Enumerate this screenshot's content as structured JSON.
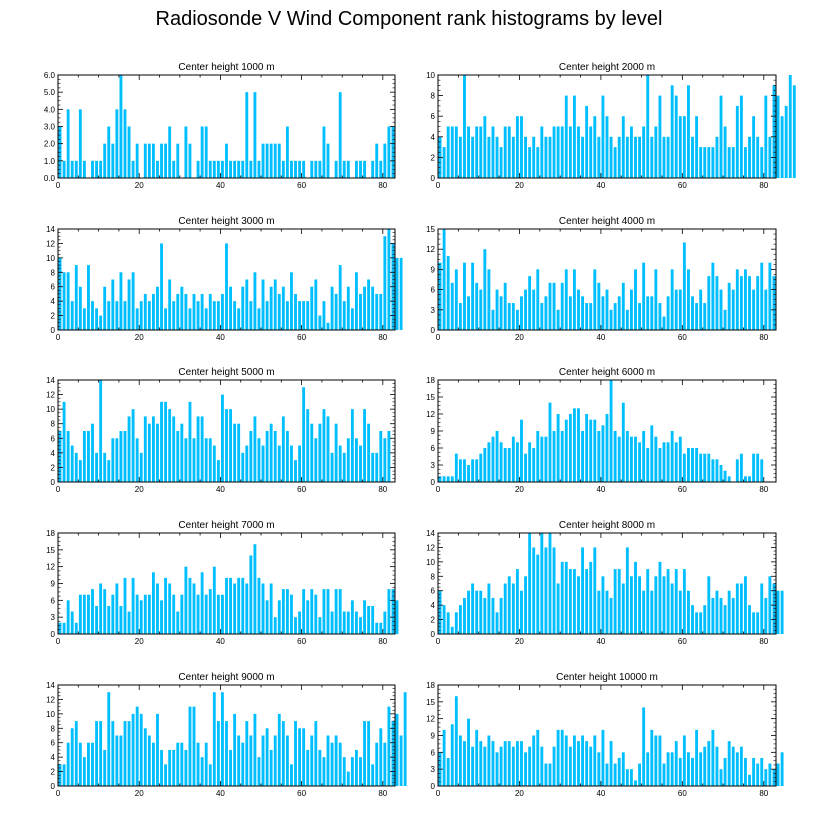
{
  "title": "Radiosonde V Wind Component rank histograms by level",
  "bar_color": "#00BFFF",
  "chart_data": [
    {
      "type": "bar",
      "title": "Center height 1000 m",
      "ylim": [
        0,
        6
      ],
      "yticks": [
        "0.0",
        "1.0",
        "2.0",
        "3.0",
        "4.0",
        "5.0",
        "6.0"
      ],
      "xticks": [
        "0",
        "20",
        "40",
        "60",
        "80"
      ],
      "values": [
        3,
        1,
        4,
        1,
        1,
        4,
        1,
        0,
        1,
        1,
        1,
        2,
        3,
        2,
        4,
        6,
        4,
        3,
        1,
        2,
        0,
        2,
        2,
        2,
        1,
        2,
        2,
        3,
        1,
        2,
        0,
        3,
        2,
        0,
        1,
        3,
        3,
        1,
        1,
        1,
        1,
        2,
        1,
        1,
        1,
        1,
        5,
        1,
        5,
        1,
        2,
        2,
        2,
        2,
        2,
        1,
        3,
        1,
        1,
        1,
        1,
        0,
        1,
        1,
        1,
        3,
        2,
        0,
        1,
        5,
        1,
        1,
        0,
        1,
        1,
        1,
        0,
        1,
        2,
        1,
        2,
        3,
        3
      ]
    },
    {
      "type": "bar",
      "title": "Center height 2000 m",
      "ylim": [
        0,
        10
      ],
      "yticks": [
        "0",
        "2",
        "4",
        "6",
        "8",
        "10"
      ],
      "xticks": [
        "0",
        "20",
        "40",
        "60",
        "80"
      ],
      "values": [
        4,
        3,
        5,
        5,
        5,
        4,
        10,
        5,
        4,
        5,
        5,
        6,
        4,
        5,
        4,
        3,
        5,
        5,
        4,
        6,
        6,
        4,
        3,
        4,
        3,
        5,
        4,
        4,
        5,
        5,
        5,
        8,
        5,
        8,
        5,
        4,
        7,
        5,
        6,
        4,
        8,
        6,
        4,
        3,
        4,
        6,
        4,
        5,
        4,
        4,
        5,
        10,
        4,
        5,
        8,
        4,
        4,
        9,
        8,
        6,
        6,
        9,
        4,
        6,
        3,
        3,
        3,
        3,
        4,
        8,
        5,
        3,
        3,
        7,
        8,
        3,
        4,
        6,
        4,
        3,
        8,
        4,
        9,
        8,
        6,
        7,
        10,
        9
      ]
    },
    {
      "type": "bar",
      "title": "Center height 3000 m",
      "ylim": [
        0,
        14
      ],
      "yticks": [
        "0",
        "2",
        "4",
        "6",
        "8",
        "10",
        "12",
        "14"
      ],
      "xticks": [
        "0",
        "20",
        "40",
        "60",
        "80"
      ],
      "values": [
        10,
        8,
        8,
        4,
        9,
        6,
        3,
        9,
        4,
        3,
        2,
        6,
        4,
        7,
        4,
        8,
        4,
        7,
        8,
        3,
        4,
        5,
        4,
        5,
        6,
        12,
        3,
        7,
        4,
        5,
        6,
        5,
        3,
        5,
        4,
        5,
        3,
        5,
        4,
        4,
        5,
        12,
        6,
        4,
        3,
        6,
        7,
        4,
        8,
        3,
        7,
        4,
        6,
        7,
        5,
        6,
        4,
        8,
        5,
        4,
        4,
        4,
        6,
        7,
        2,
        4,
        1,
        6,
        5,
        9,
        4,
        6,
        3,
        8,
        5,
        6,
        7,
        6,
        5,
        5,
        13,
        14,
        12,
        10,
        10
      ]
    },
    {
      "type": "bar",
      "title": "Center height 4000 m",
      "ylim": [
        0,
        15
      ],
      "yticks": [
        "0",
        "3",
        "6",
        "9",
        "12",
        "15"
      ],
      "xticks": [
        "0",
        "20",
        "40",
        "60",
        "80"
      ],
      "values": [
        10,
        15,
        11,
        7,
        9,
        4,
        10,
        5,
        10,
        7,
        6,
        12,
        9,
        3,
        6,
        5,
        7,
        4,
        4,
        3,
        5,
        6,
        8,
        6,
        9,
        4,
        5,
        7,
        7,
        3,
        7,
        9,
        5,
        9,
        6,
        5,
        4,
        4,
        9,
        7,
        5,
        6,
        3,
        4,
        5,
        7,
        3,
        6,
        9,
        4,
        10,
        5,
        5,
        9,
        4,
        2,
        5,
        9,
        6,
        6,
        13,
        9,
        5,
        4,
        6,
        4,
        8,
        10,
        8,
        6,
        3,
        7,
        6,
        9,
        8,
        9,
        8,
        6,
        8,
        10,
        6,
        10,
        8
      ]
    },
    {
      "type": "bar",
      "title": "Center height 5000 m",
      "ylim": [
        0,
        14
      ],
      "yticks": [
        "0",
        "2",
        "4",
        "6",
        "8",
        "10",
        "12",
        "14"
      ],
      "xticks": [
        "0",
        "20",
        "40",
        "60",
        "80"
      ],
      "values": [
        7,
        11,
        7,
        5,
        4,
        3,
        7,
        7,
        8,
        4,
        14,
        4,
        3,
        6,
        6,
        7,
        7,
        9,
        10,
        6,
        4,
        9,
        8,
        9,
        8,
        11,
        11,
        10,
        9,
        7,
        8,
        6,
        11,
        6,
        9,
        9,
        6,
        6,
        5,
        3,
        12,
        10,
        10,
        8,
        8,
        4,
        5,
        7,
        9,
        6,
        5,
        7,
        8,
        7,
        5,
        9,
        7,
        5,
        3,
        5,
        13,
        10,
        8,
        6,
        8,
        10,
        9,
        4,
        8,
        5,
        4,
        6,
        10,
        6,
        5,
        10,
        8,
        4,
        4,
        7,
        6,
        7
      ]
    },
    {
      "type": "bar",
      "title": "Center height 6000 m",
      "ylim": [
        0,
        18
      ],
      "yticks": [
        "0",
        "3",
        "6",
        "9",
        "12",
        "15",
        "18"
      ],
      "xticks": [
        "0",
        "20",
        "40",
        "60",
        "80"
      ],
      "values": [
        1,
        1,
        1,
        1,
        5,
        4,
        4,
        3,
        4,
        4,
        5,
        6,
        7,
        8,
        9,
        7,
        6,
        6,
        8,
        7,
        11,
        5,
        7,
        6,
        9,
        8,
        8,
        14,
        9,
        12,
        9,
        11,
        12,
        13,
        13,
        9,
        12,
        11,
        11,
        9,
        10,
        12,
        18,
        9,
        8,
        14,
        9,
        8,
        8,
        7,
        9,
        6,
        10,
        8,
        6,
        7,
        7,
        9,
        7,
        8,
        5,
        6,
        6,
        6,
        5,
        5,
        5,
        4,
        4,
        3,
        2,
        1,
        0,
        4,
        5,
        1,
        1,
        5,
        5,
        4,
        0,
        0
      ]
    },
    {
      "type": "bar",
      "title": "Center height 7000 m",
      "ylim": [
        0,
        18
      ],
      "yticks": [
        "0",
        "3",
        "6",
        "9",
        "12",
        "15",
        "18"
      ],
      "xticks": [
        "0",
        "20",
        "40",
        "60",
        "80"
      ],
      "values": [
        2,
        2,
        6,
        4,
        2,
        7,
        7,
        7,
        8,
        5,
        9,
        8,
        5,
        7,
        9,
        5,
        10,
        4,
        10,
        7,
        6,
        7,
        7,
        11,
        9,
        6,
        10,
        9,
        7,
        4,
        7,
        12,
        10,
        9,
        7,
        11,
        7,
        8,
        12,
        7,
        7,
        10,
        10,
        9,
        10,
        10,
        9,
        14,
        16,
        10,
        9,
        6,
        9,
        3,
        6,
        8,
        8,
        7,
        3,
        4,
        8,
        6,
        8,
        7,
        3,
        8,
        8,
        4,
        8,
        8,
        4,
        4,
        6,
        4,
        3,
        6,
        5,
        5,
        2,
        2,
        4,
        8,
        8,
        6
      ]
    },
    {
      "type": "bar",
      "title": "Center height 8000 m",
      "ylim": [
        0,
        14
      ],
      "yticks": [
        "0",
        "2",
        "4",
        "6",
        "8",
        "10",
        "12",
        "14"
      ],
      "xticks": [
        "0",
        "20",
        "40",
        "60",
        "80"
      ],
      "values": [
        6,
        4,
        3,
        1,
        3,
        4,
        5,
        6,
        7,
        6,
        6,
        5,
        7,
        5,
        3,
        5,
        7,
        8,
        7,
        9,
        6,
        8,
        14,
        12,
        11,
        14,
        12,
        14,
        12,
        7,
        10,
        10,
        9,
        9,
        8,
        12,
        9,
        10,
        12,
        6,
        8,
        6,
        5,
        9,
        9,
        7,
        12,
        8,
        10,
        8,
        6,
        9,
        6,
        8,
        10,
        8,
        9,
        7,
        9,
        6,
        9,
        6,
        4,
        3,
        3,
        4,
        8,
        5,
        6,
        5,
        4,
        6,
        5,
        7,
        7,
        8,
        4,
        3,
        3,
        7,
        5,
        8,
        7,
        6,
        6
      ]
    },
    {
      "type": "bar",
      "title": "Center height 9000 m",
      "ylim": [
        0,
        14
      ],
      "yticks": [
        "0",
        "2",
        "4",
        "6",
        "8",
        "10",
        "12",
        "14"
      ],
      "xticks": [
        "0",
        "20",
        "40",
        "60",
        "80"
      ],
      "values": [
        3,
        3,
        6,
        8,
        9,
        6,
        4,
        6,
        6,
        9,
        9,
        5,
        13,
        9,
        7,
        7,
        9,
        9,
        10,
        11,
        10,
        8,
        7,
        6,
        10,
        5,
        3,
        5,
        5,
        6,
        6,
        5,
        11,
        11,
        6,
        4,
        6,
        3,
        13,
        9,
        13,
        9,
        5,
        10,
        7,
        6,
        9,
        7,
        10,
        4,
        7,
        8,
        5,
        7,
        10,
        9,
        7,
        3,
        9,
        8,
        8,
        5,
        7,
        9,
        5,
        4,
        7,
        6,
        7,
        6,
        4,
        2,
        4,
        5,
        4,
        9,
        9,
        3,
        6,
        8,
        6,
        11,
        9,
        10,
        7,
        13
      ]
    },
    {
      "type": "bar",
      "title": "Center height 10000 m",
      "ylim": [
        0,
        18
      ],
      "yticks": [
        "0",
        "3",
        "6",
        "9",
        "12",
        "15",
        "18"
      ],
      "xticks": [
        "0",
        "20",
        "40",
        "60",
        "80"
      ],
      "values": [
        6,
        10,
        5,
        11,
        16,
        9,
        8,
        12,
        7,
        10,
        8,
        7,
        9,
        8,
        6,
        7,
        8,
        8,
        7,
        8,
        8,
        6,
        7,
        9,
        10,
        7,
        4,
        4,
        7,
        10,
        10,
        9,
        7,
        9,
        8,
        9,
        8,
        7,
        9,
        6,
        10,
        4,
        8,
        4,
        5,
        6,
        3,
        3,
        1,
        4,
        14,
        6,
        10,
        9,
        9,
        4,
        6,
        6,
        8,
        5,
        9,
        6,
        5,
        10,
        6,
        7,
        8,
        10,
        7,
        3,
        5,
        8,
        7,
        6,
        7,
        5,
        2,
        5,
        4,
        5,
        3,
        4,
        3,
        4,
        6
      ]
    }
  ]
}
